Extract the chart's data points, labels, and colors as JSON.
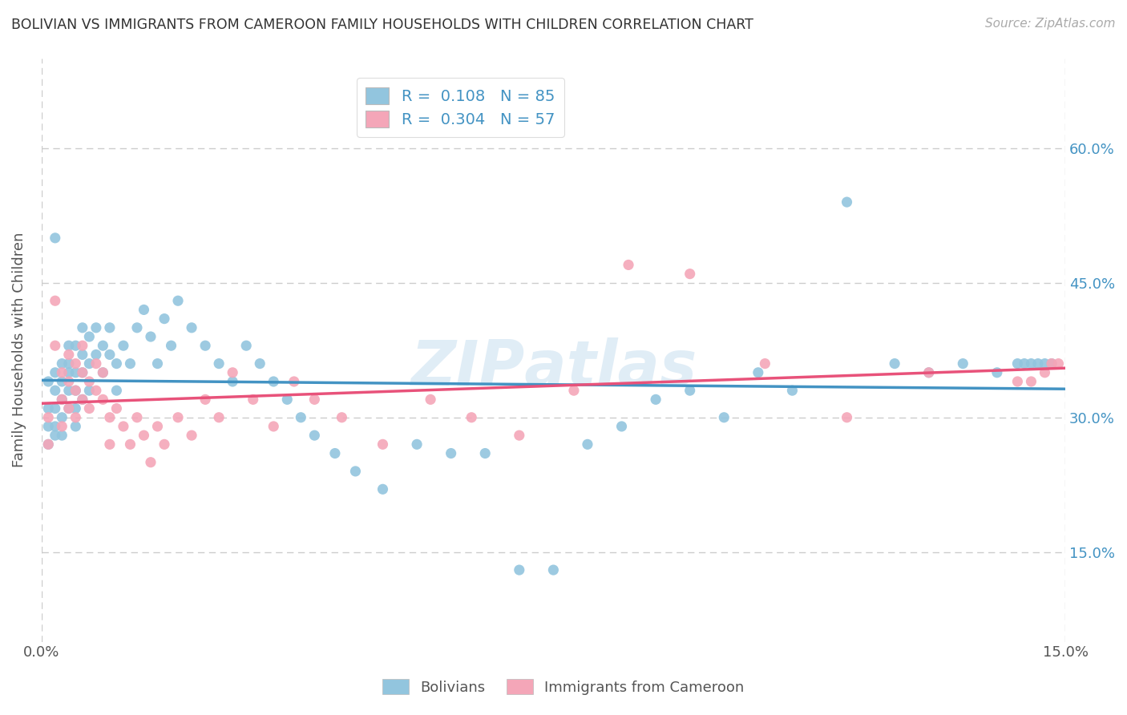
{
  "title": "BOLIVIAN VS IMMIGRANTS FROM CAMEROON FAMILY HOUSEHOLDS WITH CHILDREN CORRELATION CHART",
  "source": "Source: ZipAtlas.com",
  "ylabel": "Family Households with Children",
  "xlim": [
    0.0,
    0.15
  ],
  "ylim": [
    0.05,
    0.7
  ],
  "bolivians_R": 0.108,
  "bolivians_N": 85,
  "cameroon_R": 0.304,
  "cameroon_N": 57,
  "blue_color": "#92c5de",
  "pink_color": "#f4a6b8",
  "blue_line_color": "#4393c3",
  "pink_line_color": "#e8527a",
  "legend_label_blue": "Bolivians",
  "legend_label_pink": "Immigrants from Cameroon",
  "bolivians_x": [
    0.001,
    0.001,
    0.001,
    0.001,
    0.002,
    0.002,
    0.002,
    0.002,
    0.002,
    0.002,
    0.003,
    0.003,
    0.003,
    0.003,
    0.003,
    0.004,
    0.004,
    0.004,
    0.004,
    0.004,
    0.005,
    0.005,
    0.005,
    0.005,
    0.005,
    0.006,
    0.006,
    0.006,
    0.006,
    0.007,
    0.007,
    0.007,
    0.008,
    0.008,
    0.009,
    0.009,
    0.01,
    0.01,
    0.011,
    0.011,
    0.012,
    0.013,
    0.014,
    0.015,
    0.016,
    0.017,
    0.018,
    0.019,
    0.02,
    0.022,
    0.024,
    0.026,
    0.028,
    0.03,
    0.032,
    0.034,
    0.036,
    0.038,
    0.04,
    0.043,
    0.046,
    0.05,
    0.055,
    0.06,
    0.065,
    0.07,
    0.075,
    0.08,
    0.085,
    0.09,
    0.095,
    0.1,
    0.105,
    0.11,
    0.118,
    0.125,
    0.13,
    0.135,
    0.14,
    0.143,
    0.144,
    0.145,
    0.146,
    0.147,
    0.148
  ],
  "bolivians_y": [
    0.34,
    0.31,
    0.29,
    0.27,
    0.35,
    0.33,
    0.31,
    0.29,
    0.28,
    0.5,
    0.36,
    0.34,
    0.32,
    0.3,
    0.28,
    0.38,
    0.35,
    0.33,
    0.31,
    0.36,
    0.38,
    0.35,
    0.33,
    0.31,
    0.29,
    0.4,
    0.37,
    0.35,
    0.32,
    0.39,
    0.36,
    0.33,
    0.4,
    0.37,
    0.38,
    0.35,
    0.4,
    0.37,
    0.36,
    0.33,
    0.38,
    0.36,
    0.4,
    0.42,
    0.39,
    0.36,
    0.41,
    0.38,
    0.43,
    0.4,
    0.38,
    0.36,
    0.34,
    0.38,
    0.36,
    0.34,
    0.32,
    0.3,
    0.28,
    0.26,
    0.24,
    0.22,
    0.27,
    0.26,
    0.26,
    0.13,
    0.13,
    0.27,
    0.29,
    0.32,
    0.33,
    0.3,
    0.35,
    0.33,
    0.54,
    0.36,
    0.35,
    0.36,
    0.35,
    0.36,
    0.36,
    0.36,
    0.36,
    0.36,
    0.36
  ],
  "cameroon_x": [
    0.001,
    0.001,
    0.002,
    0.002,
    0.003,
    0.003,
    0.003,
    0.004,
    0.004,
    0.004,
    0.005,
    0.005,
    0.005,
    0.006,
    0.006,
    0.006,
    0.007,
    0.007,
    0.008,
    0.008,
    0.009,
    0.009,
    0.01,
    0.01,
    0.011,
    0.012,
    0.013,
    0.014,
    0.015,
    0.016,
    0.017,
    0.018,
    0.02,
    0.022,
    0.024,
    0.026,
    0.028,
    0.031,
    0.034,
    0.037,
    0.04,
    0.044,
    0.05,
    0.057,
    0.063,
    0.07,
    0.078,
    0.086,
    0.095,
    0.106,
    0.118,
    0.13,
    0.143,
    0.145,
    0.147,
    0.148,
    0.149
  ],
  "cameroon_y": [
    0.3,
    0.27,
    0.43,
    0.38,
    0.35,
    0.32,
    0.29,
    0.37,
    0.34,
    0.31,
    0.36,
    0.33,
    0.3,
    0.38,
    0.35,
    0.32,
    0.34,
    0.31,
    0.36,
    0.33,
    0.35,
    0.32,
    0.3,
    0.27,
    0.31,
    0.29,
    0.27,
    0.3,
    0.28,
    0.25,
    0.29,
    0.27,
    0.3,
    0.28,
    0.32,
    0.3,
    0.35,
    0.32,
    0.29,
    0.34,
    0.32,
    0.3,
    0.27,
    0.32,
    0.3,
    0.28,
    0.33,
    0.47,
    0.46,
    0.36,
    0.3,
    0.35,
    0.34,
    0.34,
    0.35,
    0.36,
    0.36
  ]
}
